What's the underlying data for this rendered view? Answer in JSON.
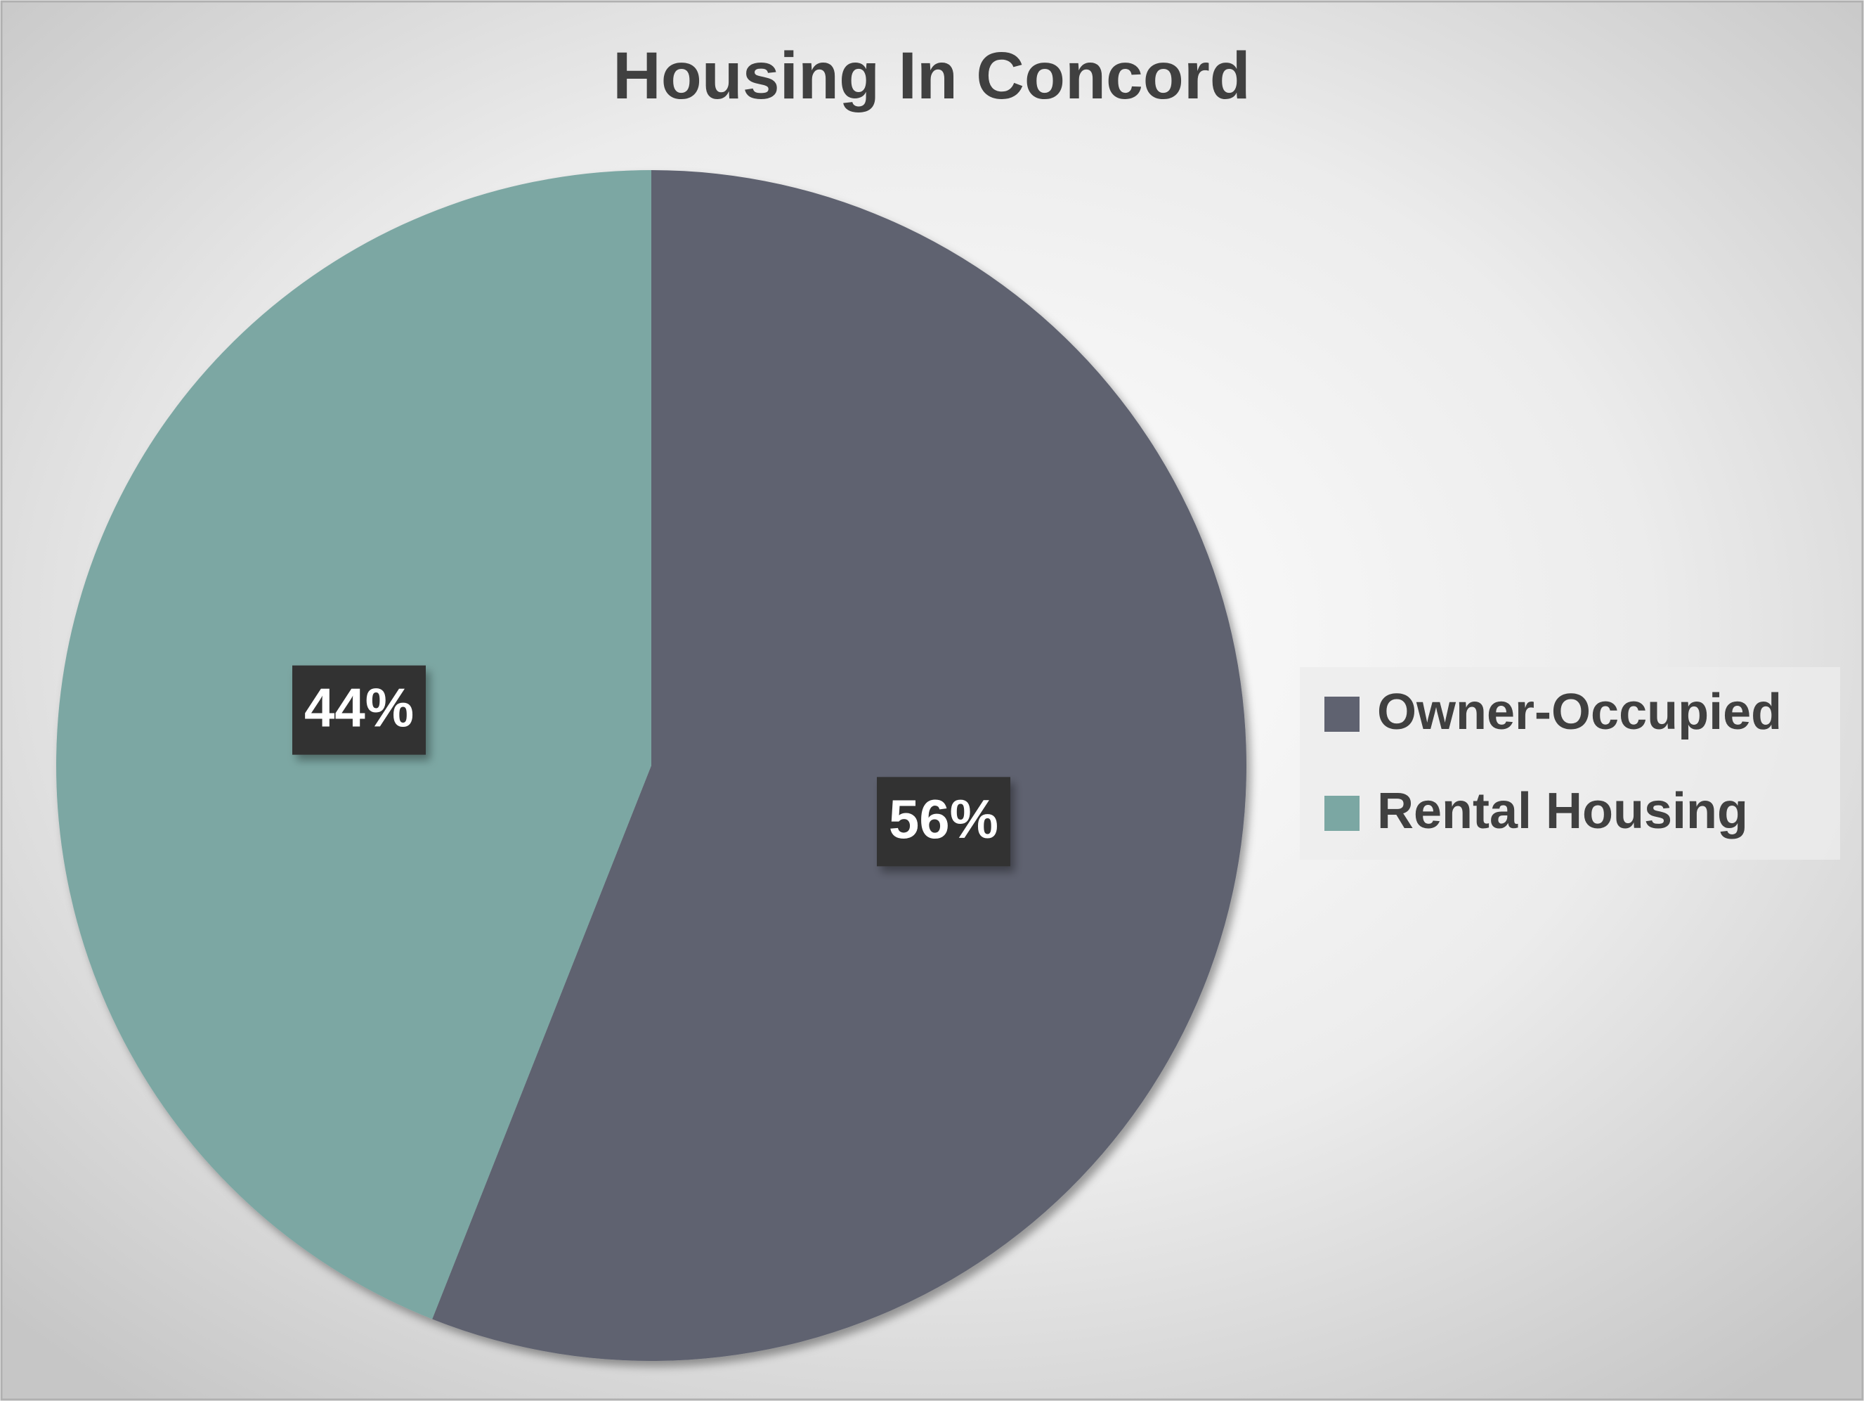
{
  "chart_data": {
    "type": "pie",
    "title": "Housing In Concord",
    "categories": [
      "Owner-Occupied",
      "Rental Housing"
    ],
    "values": [
      56,
      44
    ],
    "value_labels": [
      "56%",
      "44%"
    ],
    "colors": [
      "#5f6270",
      "#7ba7a3"
    ],
    "legend": "right"
  }
}
